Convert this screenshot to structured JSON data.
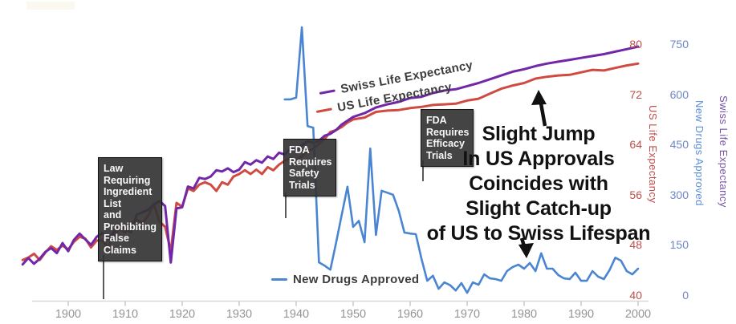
{
  "legend": {
    "swiss": "Swiss Life Expectancy",
    "us": "US Life Expectancy",
    "drugs": "New Drugs Approved"
  },
  "annotations": {
    "law_box": "Law\nRequiring\nIngredient\nList\nand\nProhibiting\nFalse\nClaims",
    "safety_box": "FDA\nRequires\nSafety\nTrials",
    "efficacy_box": "FDA\nRequires\nEfficacy\nTrials",
    "big_note": {
      "lines": [
        "Slight Jump",
        "In US Approvals",
        "Coincides with",
        "Slight Catch-up",
        "of US to Swiss Lifespan"
      ]
    }
  },
  "axes": {
    "x": {
      "tick_labels": [
        "1900",
        "1910",
        "1920",
        "1930",
        "1940",
        "1950",
        "1960",
        "1970",
        "1980",
        "1990",
        "2000"
      ],
      "tick_years": [
        1900,
        1910,
        1920,
        1930,
        1940,
        1950,
        1960,
        1970,
        1980,
        1990,
        2000
      ]
    },
    "us": {
      "title": "US Life Expectancy",
      "ticks": [
        80,
        72,
        64,
        56,
        48,
        40
      ],
      "range": [
        40,
        80
      ]
    },
    "drugs": {
      "title": "New Drugs Approved",
      "ticks": [
        750,
        600,
        450,
        300,
        150,
        0
      ],
      "range": [
        0,
        750
      ]
    },
    "swiss": {
      "title": "Swiss Life Expectancy",
      "note": "axis shown without tick values; series digitized against US scale"
    }
  },
  "colors": {
    "us_line": "#cf4b42",
    "swiss_line": "#7127a8",
    "drugs_line": "#4a85d2",
    "us_labels": "#bf4d4a",
    "drugs_labels": "#6e86c8",
    "swiss_label_text": "#7a52a8",
    "drugs_axis_title": "#5c8fd6",
    "x_labels": "#949494",
    "axis_line": "#d9d9d9",
    "annotation_box": "#343434",
    "annotation_text": "#f7f7f7",
    "arrow": "#111111"
  },
  "chart_data": {
    "type": "line",
    "xlim": [
      1890,
      2002
    ],
    "x_axis": "year",
    "legend_position": "inline-annotations",
    "grid": false,
    "series": [
      {
        "name": "US Life Expectancy",
        "axis": "us",
        "color": "#cf4b42",
        "points": [
          [
            1892,
            45.6
          ],
          [
            1893,
            46.0
          ],
          [
            1894,
            46.6
          ],
          [
            1895,
            45.6
          ],
          [
            1896,
            46.8
          ],
          [
            1897,
            47.8
          ],
          [
            1898,
            47.2
          ],
          [
            1899,
            47.9
          ],
          [
            1900,
            47.3
          ],
          [
            1901,
            48.5
          ],
          [
            1902,
            49.3
          ],
          [
            1903,
            49.0
          ],
          [
            1904,
            47.6
          ],
          [
            1905,
            48.7
          ],
          [
            1906,
            48.7
          ],
          [
            1907,
            47.6
          ],
          [
            1908,
            49.5
          ],
          [
            1909,
            50.5
          ],
          [
            1910,
            50.0
          ],
          [
            1911,
            51.5
          ],
          [
            1912,
            52.0
          ],
          [
            1913,
            51.5
          ],
          [
            1914,
            52.6
          ],
          [
            1915,
            54.5
          ],
          [
            1916,
            51.7
          ],
          [
            1917,
            50.9
          ],
          [
            1918,
            47.0
          ],
          [
            1919,
            54.7
          ],
          [
            1920,
            54.1
          ],
          [
            1921,
            57.0
          ],
          [
            1922,
            56.6
          ],
          [
            1923,
            57.6
          ],
          [
            1924,
            58.0
          ],
          [
            1925,
            57.6
          ],
          [
            1926,
            56.6
          ],
          [
            1927,
            58.0
          ],
          [
            1928,
            57.6
          ],
          [
            1929,
            58.9
          ],
          [
            1930,
            59.3
          ],
          [
            1931,
            59.9
          ],
          [
            1932,
            59.3
          ],
          [
            1933,
            60.0
          ],
          [
            1934,
            59.3
          ],
          [
            1935,
            60.4
          ],
          [
            1936,
            59.9
          ],
          [
            1937,
            60.8
          ],
          [
            1938,
            61.4
          ],
          [
            1939,
            61.8
          ],
          [
            1940,
            61.5
          ],
          [
            1941,
            62.1
          ],
          [
            1942,
            63.0
          ],
          [
            1943,
            63.3
          ],
          [
            1944,
            64.1
          ],
          [
            1945,
            64.9
          ],
          [
            1946,
            66.0
          ],
          [
            1947,
            66.3
          ],
          [
            1948,
            66.8
          ],
          [
            1949,
            67.5
          ],
          [
            1950,
            68.0
          ],
          [
            1952,
            68.3
          ],
          [
            1954,
            69.2
          ],
          [
            1956,
            69.4
          ],
          [
            1958,
            69.5
          ],
          [
            1960,
            69.8
          ],
          [
            1962,
            70.0
          ],
          [
            1964,
            70.3
          ],
          [
            1966,
            70.4
          ],
          [
            1968,
            70.5
          ],
          [
            1970,
            71.0
          ],
          [
            1972,
            71.3
          ],
          [
            1974,
            72.1
          ],
          [
            1976,
            72.9
          ],
          [
            1978,
            73.4
          ],
          [
            1980,
            73.8
          ],
          [
            1982,
            74.5
          ],
          [
            1984,
            74.8
          ],
          [
            1986,
            75.0
          ],
          [
            1988,
            75.1
          ],
          [
            1990,
            75.5
          ],
          [
            1992,
            75.9
          ],
          [
            1994,
            75.8
          ],
          [
            1996,
            76.2
          ],
          [
            1998,
            76.6
          ],
          [
            2000,
            76.9
          ]
        ]
      },
      {
        "name": "Swiss Life Expectancy",
        "axis": "swiss",
        "color": "#7127a8",
        "points": [
          [
            1892,
            44.9
          ],
          [
            1893,
            45.9
          ],
          [
            1894,
            45.0
          ],
          [
            1895,
            45.8
          ],
          [
            1896,
            46.9
          ],
          [
            1897,
            47.5
          ],
          [
            1898,
            46.7
          ],
          [
            1899,
            48.3
          ],
          [
            1900,
            47.0
          ],
          [
            1901,
            48.8
          ],
          [
            1902,
            49.8
          ],
          [
            1903,
            48.9
          ],
          [
            1904,
            48.0
          ],
          [
            1905,
            49.3
          ],
          [
            1906,
            49.9
          ],
          [
            1907,
            48.9
          ],
          [
            1908,
            50.1
          ],
          [
            1909,
            51.1
          ],
          [
            1910,
            50.6
          ],
          [
            1911,
            50.0
          ],
          [
            1912,
            52.8
          ],
          [
            1913,
            53.2
          ],
          [
            1914,
            53.6
          ],
          [
            1915,
            54.4
          ],
          [
            1916,
            55.0
          ],
          [
            1917,
            54.2
          ],
          [
            1918,
            45.2
          ],
          [
            1919,
            53.8
          ],
          [
            1920,
            54.0
          ],
          [
            1921,
            57.3
          ],
          [
            1922,
            57.0
          ],
          [
            1923,
            58.7
          ],
          [
            1924,
            58.5
          ],
          [
            1925,
            58.9
          ],
          [
            1926,
            59.9
          ],
          [
            1927,
            59.7
          ],
          [
            1928,
            60.2
          ],
          [
            1929,
            59.6
          ],
          [
            1930,
            60.0
          ],
          [
            1931,
            61.2
          ],
          [
            1932,
            60.8
          ],
          [
            1933,
            61.5
          ],
          [
            1934,
            61.1
          ],
          [
            1935,
            62.1
          ],
          [
            1936,
            61.7
          ],
          [
            1937,
            62.7
          ],
          [
            1938,
            62.4
          ],
          [
            1939,
            63.4
          ],
          [
            1940,
            63.1
          ],
          [
            1941,
            63.9
          ],
          [
            1942,
            64.5
          ],
          [
            1943,
            64.3
          ],
          [
            1944,
            64.6
          ],
          [
            1945,
            65.4
          ],
          [
            1946,
            65.7
          ],
          [
            1947,
            66.3
          ],
          [
            1948,
            67.2
          ],
          [
            1949,
            67.8
          ],
          [
            1950,
            68.4
          ],
          [
            1952,
            69.0
          ],
          [
            1954,
            69.9
          ],
          [
            1956,
            70.4
          ],
          [
            1958,
            70.8
          ],
          [
            1960,
            71.4
          ],
          [
            1962,
            71.6
          ],
          [
            1964,
            72.2
          ],
          [
            1966,
            72.6
          ],
          [
            1968,
            72.8
          ],
          [
            1970,
            73.3
          ],
          [
            1972,
            73.8
          ],
          [
            1974,
            74.4
          ],
          [
            1976,
            75.0
          ],
          [
            1978,
            75.6
          ],
          [
            1980,
            76.0
          ],
          [
            1982,
            76.5
          ],
          [
            1984,
            76.9
          ],
          [
            1986,
            77.2
          ],
          [
            1988,
            77.5
          ],
          [
            1990,
            77.8
          ],
          [
            1992,
            78.1
          ],
          [
            1994,
            78.4
          ],
          [
            1996,
            78.8
          ],
          [
            1998,
            79.2
          ],
          [
            2000,
            79.6
          ]
        ]
      },
      {
        "name": "New Drugs Approved",
        "axis": "drugs",
        "color": "#4a85d2",
        "points": [
          [
            1938,
            585
          ],
          [
            1939,
            585
          ],
          [
            1940,
            590
          ],
          [
            1941,
            800
          ],
          [
            1942,
            505
          ],
          [
            1943,
            500
          ],
          [
            1944,
            98
          ],
          [
            1945,
            88
          ],
          [
            1946,
            76
          ],
          [
            1947,
            156
          ],
          [
            1948,
            240
          ],
          [
            1949,
            324
          ],
          [
            1950,
            204
          ],
          [
            1951,
            222
          ],
          [
            1952,
            158
          ],
          [
            1953,
            438
          ],
          [
            1954,
            180
          ],
          [
            1955,
            312
          ],
          [
            1956,
            306
          ],
          [
            1957,
            300
          ],
          [
            1958,
            252
          ],
          [
            1959,
            187
          ],
          [
            1960,
            184
          ],
          [
            1961,
            182
          ],
          [
            1962,
            108
          ],
          [
            1963,
            43
          ],
          [
            1964,
            58
          ],
          [
            1965,
            19
          ],
          [
            1966,
            38
          ],
          [
            1967,
            30
          ],
          [
            1968,
            14
          ],
          [
            1969,
            36
          ],
          [
            1970,
            7
          ],
          [
            1971,
            38
          ],
          [
            1972,
            31
          ],
          [
            1973,
            62
          ],
          [
            1974,
            50
          ],
          [
            1975,
            48
          ],
          [
            1976,
            43
          ],
          [
            1977,
            72
          ],
          [
            1978,
            84
          ],
          [
            1979,
            91
          ],
          [
            1980,
            79
          ],
          [
            1981,
            96
          ],
          [
            1982,
            72
          ],
          [
            1983,
            125
          ],
          [
            1984,
            79
          ],
          [
            1985,
            79
          ],
          [
            1986,
            60
          ],
          [
            1987,
            50
          ],
          [
            1988,
            48
          ],
          [
            1989,
            67
          ],
          [
            1990,
            43
          ],
          [
            1991,
            43
          ],
          [
            1992,
            72
          ],
          [
            1993,
            55
          ],
          [
            1994,
            48
          ],
          [
            1995,
            75
          ],
          [
            1996,
            112
          ],
          [
            1997,
            103
          ],
          [
            1998,
            72
          ],
          [
            1999,
            62
          ],
          [
            2000,
            79
          ]
        ]
      }
    ],
    "title": "",
    "xlabel": "",
    "ylabel_right_1": "US Life Expectancy",
    "ylabel_right_2": "New Drugs Approved",
    "ylabel_right_3": "Swiss Life Expectancy"
  }
}
